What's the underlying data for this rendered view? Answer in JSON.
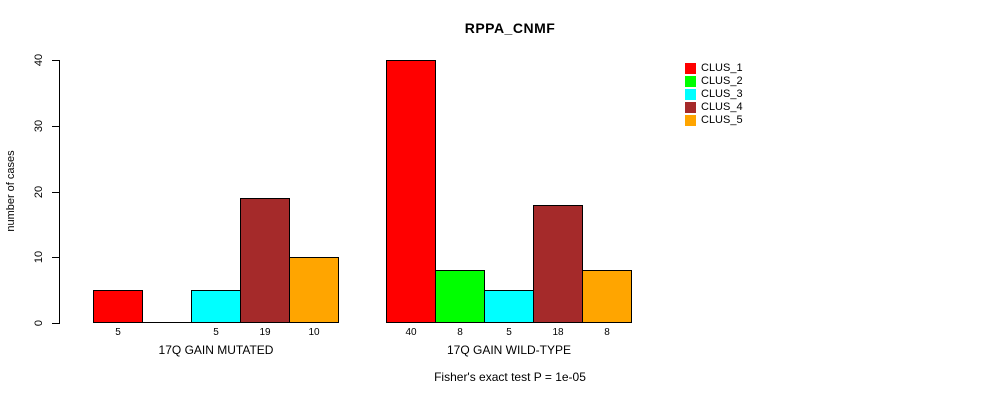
{
  "chart_data": {
    "type": "bar",
    "title": "RPPA_CNMF",
    "ylabel": "number of cases",
    "xlabel": "",
    "ylim": [
      0,
      40
    ],
    "yticks": [
      0,
      10,
      20,
      30,
      40
    ],
    "grid": false,
    "categories": [
      "17Q GAIN MUTATED",
      "17Q GAIN WILD-TYPE"
    ],
    "series": [
      {
        "name": "CLUS_1",
        "color": "#FF0000",
        "values": [
          5,
          40
        ]
      },
      {
        "name": "CLUS_2",
        "color": "#00FF00",
        "values": [
          0,
          8
        ]
      },
      {
        "name": "CLUS_3",
        "color": "#00FFFF",
        "values": [
          5,
          5
        ]
      },
      {
        "name": "CLUS_4",
        "color": "#A52A2A",
        "values": [
          19,
          18
        ]
      },
      {
        "name": "CLUS_5",
        "color": "#FFA500",
        "values": [
          10,
          8
        ]
      }
    ],
    "bar_value_labels": {
      "shown": true,
      "hide_zero": true
    },
    "legend_position": "right",
    "annotation": "Fisher's exact test P = 1e-05"
  },
  "colors": {
    "axis": "#000000",
    "text": "#000000",
    "background": "#FFFFFF"
  }
}
